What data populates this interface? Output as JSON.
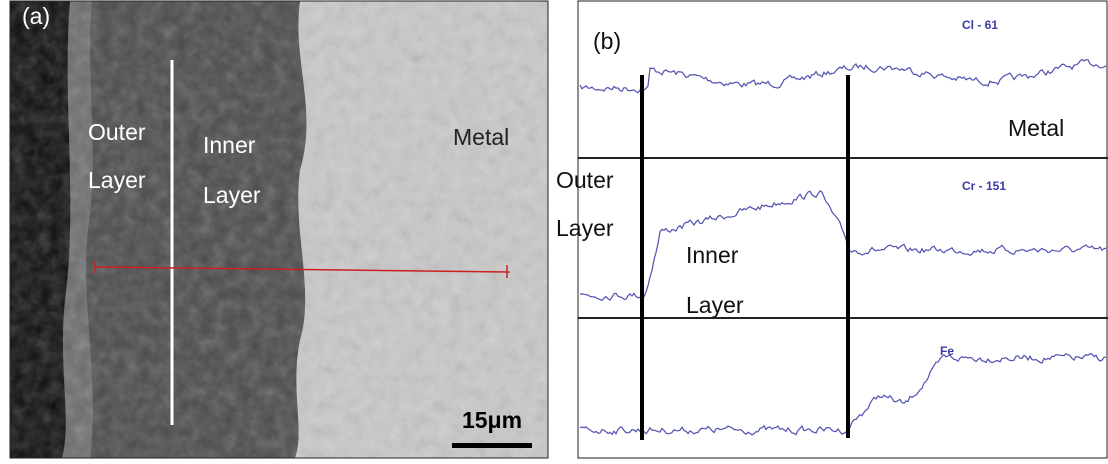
{
  "panel_a": {
    "label": "(a)",
    "outer": [
      "Outer",
      "Layer"
    ],
    "inner": [
      "Inner",
      "Layer"
    ],
    "metal": "Metal",
    "scale_bar": "15μm"
  },
  "panel_b": {
    "label": "(b)",
    "metal": "Metal",
    "outer": [
      "Outer",
      "Layer"
    ],
    "inner": [
      "Inner",
      "Layer"
    ],
    "elements": [
      "Cl - 61",
      "Cr - 151",
      "Fe"
    ]
  }
}
